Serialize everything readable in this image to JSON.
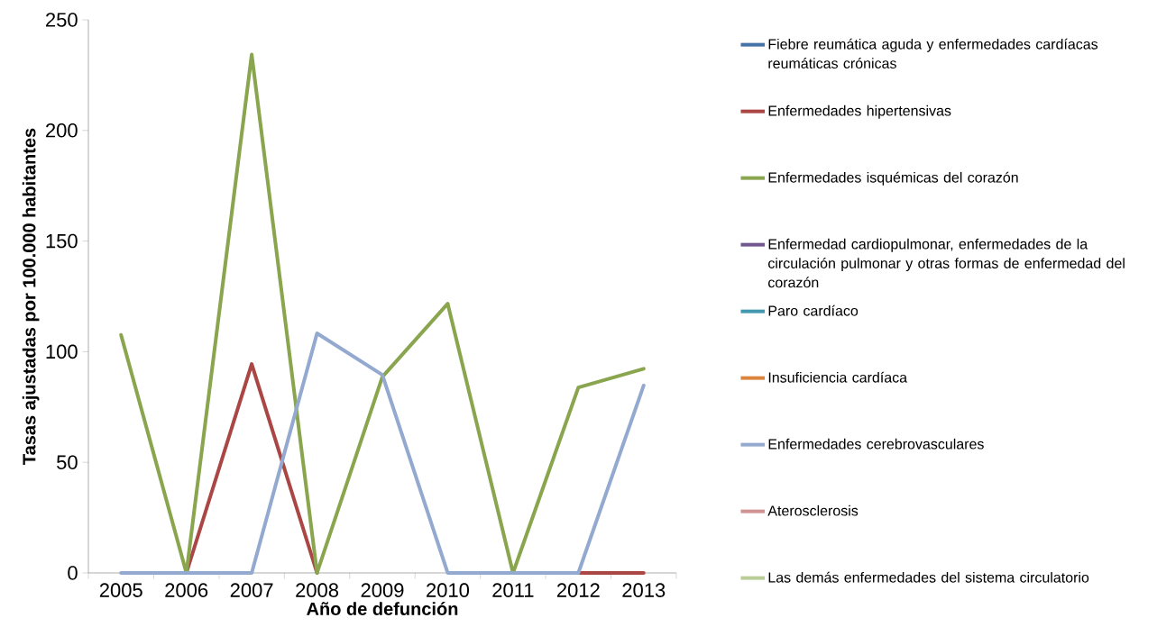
{
  "chart_data": {
    "type": "line",
    "xlabel": "Año de defunción",
    "ylabel": "Tasas ajustadas por 100.000 habitantes",
    "categories": [
      "2005",
      "2006",
      "2007",
      "2008",
      "2009",
      "2010",
      "2011",
      "2012",
      "2013"
    ],
    "series": [
      {
        "name": "Fiebre reumática aguda y enfermedades cardíacas reumáticas crónicas",
        "color": "#4572a7",
        "values": [
          null,
          null,
          null,
          null,
          null,
          null,
          null,
          null,
          null
        ]
      },
      {
        "name": "Enfermedades hipertensivas",
        "color": "#aa4643",
        "values": [
          null,
          0,
          94.4,
          0,
          null,
          null,
          null,
          0,
          0
        ]
      },
      {
        "name": "Enfermedades isquémicas del corazón",
        "color": "#89a54e",
        "values": [
          107.6,
          0,
          234.3,
          0,
          88.6,
          121.7,
          0,
          83.8,
          92.3
        ]
      },
      {
        "name": "Enfermedad cardiopulmonar, enfermedades de la circulación pulmonar y otras formas de enfermedad del corazón",
        "color": "#71588f",
        "values": [
          null,
          null,
          null,
          null,
          null,
          null,
          null,
          null,
          null
        ]
      },
      {
        "name": "Paro cardíaco",
        "color": "#4198af",
        "values": [
          null,
          null,
          null,
          null,
          null,
          null,
          null,
          null,
          null
        ]
      },
      {
        "name": "Insuficiencia cardíaca",
        "color": "#db843d",
        "values": [
          null,
          null,
          null,
          null,
          null,
          null,
          null,
          null,
          null
        ]
      },
      {
        "name": "Enfermedades cerebrovasculares",
        "color": "#93a9cf",
        "values": [
          0,
          0,
          0,
          108.3,
          89.5,
          0,
          0,
          0,
          84.7
        ]
      },
      {
        "name": "Aterosclerosis",
        "color": "#d19392",
        "values": [
          null,
          null,
          null,
          null,
          null,
          null,
          null,
          null,
          null
        ]
      },
      {
        "name": "Las demás enfermedades del sistema circulatorio",
        "color": "#b9cd96",
        "values": [
          null,
          null,
          null,
          null,
          null,
          null,
          null,
          null,
          null
        ]
      }
    ],
    "ylim": [
      0,
      250
    ],
    "yticks": [
      0,
      50,
      100,
      150,
      200,
      250
    ],
    "grid": false,
    "legend": "right",
    "marker": "none",
    "line_style": "solid"
  }
}
